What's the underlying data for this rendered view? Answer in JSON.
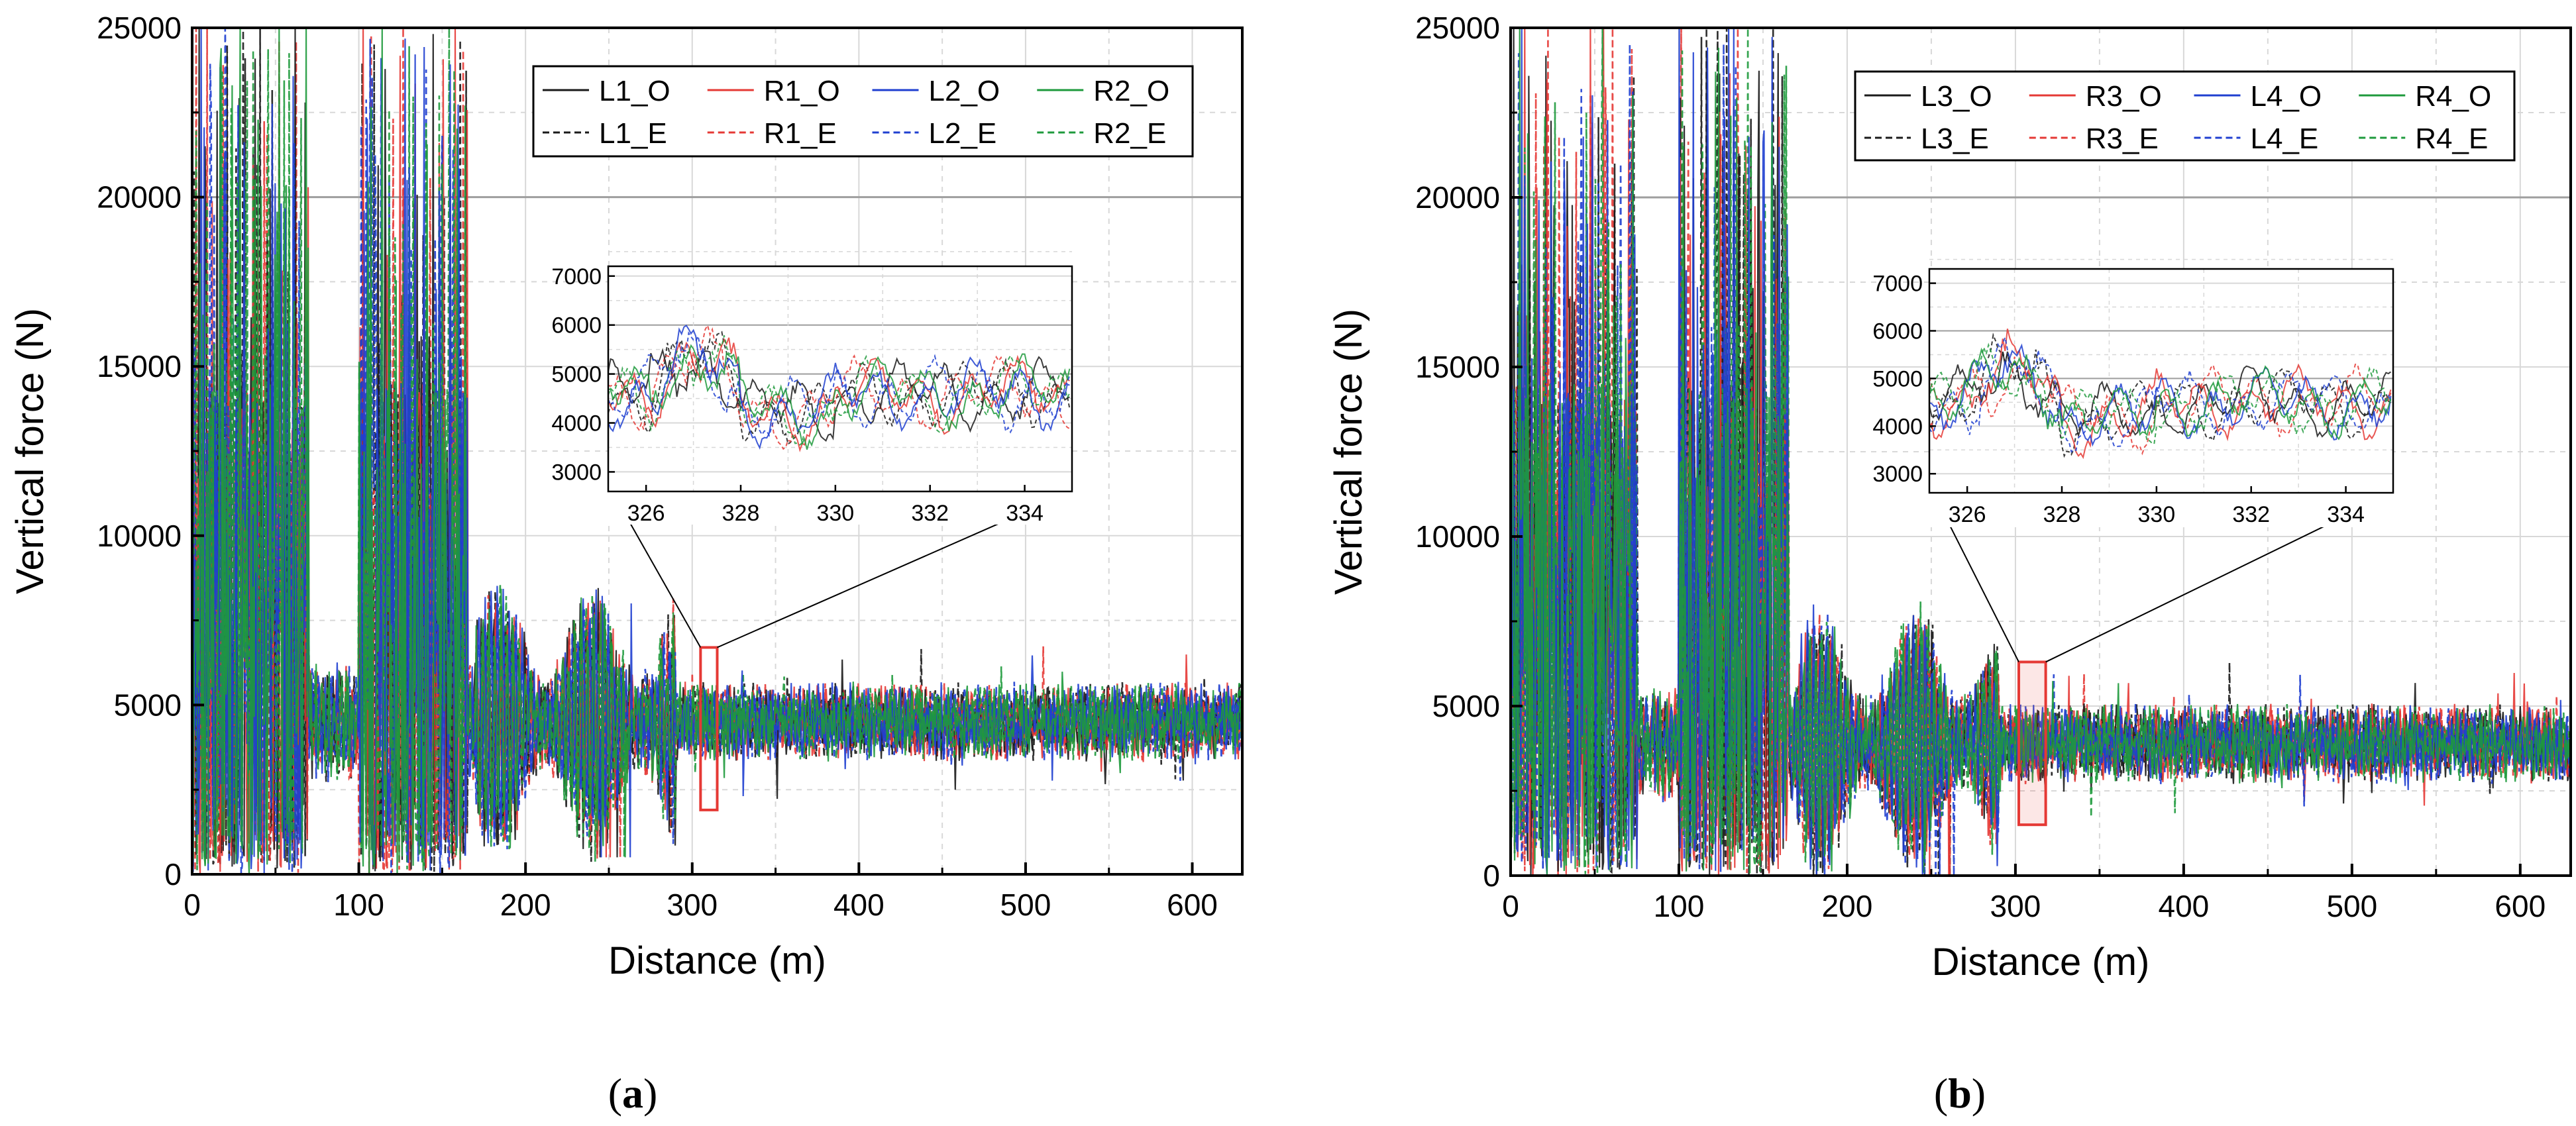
{
  "figure": {
    "panels": [
      "(a)",
      "(b)"
    ],
    "label_a": {
      "open": "(",
      "letter": "a",
      "close": ")"
    },
    "label_b": {
      "open": "(",
      "letter": "b",
      "close": ")"
    }
  },
  "colors": {
    "L": "#1a1a1a",
    "R": "#e53935",
    "L2": "#1f3fd0",
    "R2": "#1e9a3c",
    "axis": "#000000",
    "grid_major": "#9e9e9e",
    "grid_minor": "#d8d8d8",
    "zoom_box": "#e53935"
  },
  "chart_data": [
    {
      "type": "line",
      "panel": "(a)",
      "xlabel": "Distance (m)",
      "ylabel": "Vertical force (N)",
      "xlim": [
        0,
        630
      ],
      "ylim": [
        0,
        25000
      ],
      "xticks": [
        "0",
        "100",
        "200",
        "300",
        "400",
        "500",
        "600"
      ],
      "yticks": [
        "0",
        "5000",
        "10000",
        "15000",
        "20000",
        "25000"
      ],
      "legend": [
        "L1_O",
        "R1_O",
        "L2_O",
        "R2_O",
        "L1_E",
        "R1_E",
        "L2_E",
        "R2_E"
      ],
      "legend_position": "top-right",
      "series_summary": {
        "steady_mean": 4500,
        "steady_band": [
          3000,
          6000
        ],
        "high_impact_zones": [
          [
            0,
            70
          ],
          [
            100,
            165
          ]
        ],
        "peak_max": 25000
      },
      "zoom_region": {
        "x_range": [
          305,
          315
        ],
        "y_range": [
          1900,
          6700
        ]
      },
      "inset": {
        "xlim": [
          325.2,
          335
        ],
        "ylim": [
          2600,
          7200
        ],
        "xticks": [
          "326",
          "328",
          "330",
          "332",
          "334"
        ],
        "yticks": [
          "3000",
          "4000",
          "5000",
          "6000",
          "7000"
        ],
        "mean": 4600
      }
    },
    {
      "type": "line",
      "panel": "(b)",
      "xlabel": "Distance (m)",
      "ylabel": "Vertical force (N)",
      "xlim": [
        0,
        630
      ],
      "ylim": [
        0,
        25000
      ],
      "xticks": [
        "0",
        "100",
        "200",
        "300",
        "400",
        "500",
        "600"
      ],
      "yticks": [
        "0",
        "5000",
        "10000",
        "15000",
        "20000",
        "25000"
      ],
      "legend": [
        "L3_O",
        "R3_O",
        "L4_O",
        "R4_O",
        "L3_E",
        "R3_E",
        "L4_E",
        "R4_E"
      ],
      "legend_position": "top-right",
      "series_summary": {
        "steady_mean": 3900,
        "steady_band": [
          2500,
          5500
        ],
        "high_impact_zones": [
          [
            0,
            75
          ],
          [
            100,
            165
          ]
        ],
        "peak_max": 25000
      },
      "zoom_region": {
        "x_range": [
          302,
          318
        ],
        "y_range": [
          1500,
          6300
        ]
      },
      "inset": {
        "xlim": [
          325.2,
          335
        ],
        "ylim": [
          2600,
          7300
        ],
        "xticks": [
          "326",
          "328",
          "330",
          "332",
          "334"
        ],
        "yticks": [
          "3000",
          "4000",
          "5000",
          "6000",
          "7000"
        ],
        "mean": 4500
      }
    }
  ]
}
